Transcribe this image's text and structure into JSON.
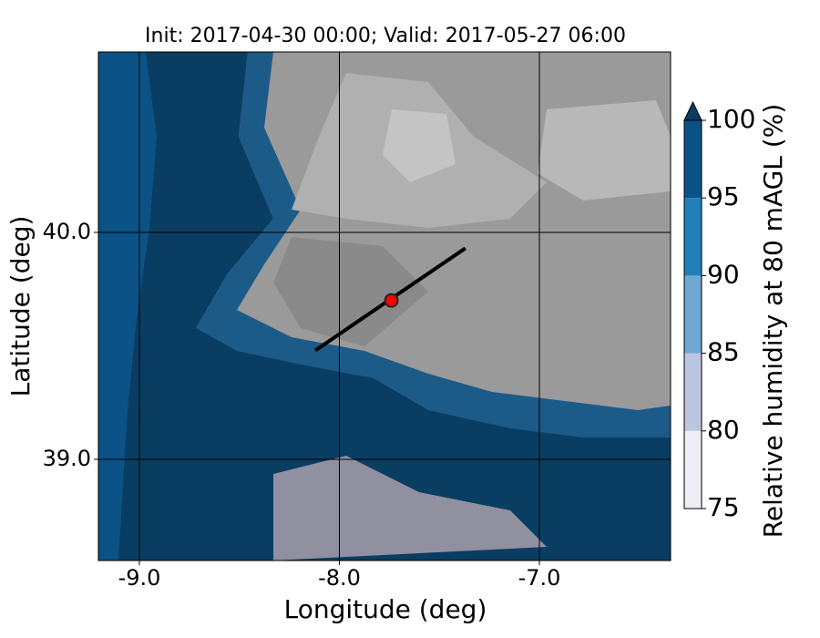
{
  "chart_data": {
    "type": "map",
    "title": "Init: 2017-04-30 00:00; Valid: 2017-05-27 06:00",
    "x_label": "Longitude (deg)",
    "y_label": "Latitude (deg)",
    "xlim": [
      -9.205,
      -6.344
    ],
    "ylim": [
      38.554,
      40.795
    ],
    "xticks": [
      {
        "value": -9,
        "label": "-9.0"
      },
      {
        "value": -8,
        "label": "-8.0"
      },
      {
        "value": -7,
        "label": "-7.0"
      }
    ],
    "yticks": [
      {
        "value": 39,
        "label": "39.0"
      },
      {
        "value": 40,
        "label": "40.0"
      }
    ],
    "grid": true,
    "cross_section": {
      "x": [
        -8.12,
        -7.37
      ],
      "y": [
        39.48,
        39.93
      ],
      "color": "#000000"
    },
    "point": {
      "x": -7.74,
      "y": 39.7,
      "color": "#ff0000"
    },
    "colorbar": {
      "label": "Relative humidity at 80 mAGL (%)",
      "ticks": [
        75,
        80,
        85,
        90,
        95,
        100
      ],
      "colors": [
        "#efedf5",
        "#bcc6e0",
        "#6fa8d0",
        "#1f80ba",
        "#0b5286"
      ],
      "extend_color": "#0a3d62"
    }
  }
}
